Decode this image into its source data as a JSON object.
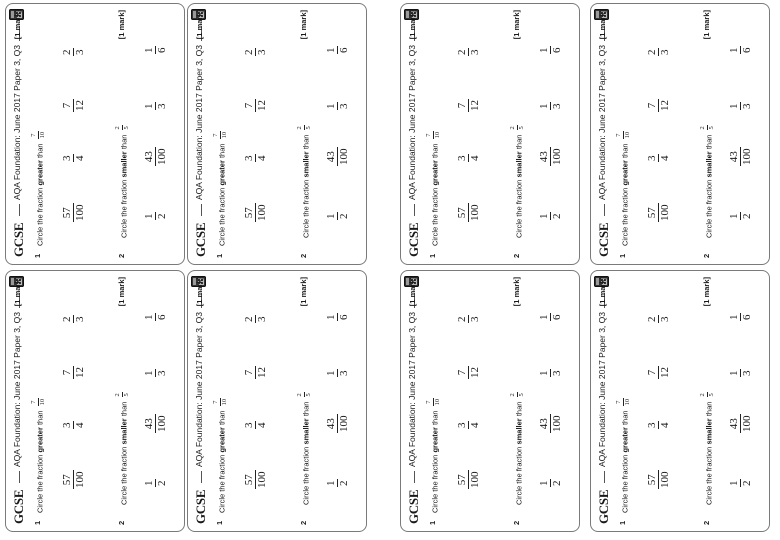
{
  "card": {
    "gcse_label": "GCSE",
    "paper_ref": "AQA Foundation: June 2017 Paper 3, Q3",
    "calculator_icon": "calculator-icon",
    "questions": [
      {
        "number": "1",
        "text_pre": "Circle the fraction ",
        "text_bold": "greater",
        "text_post": " than",
        "target": {
          "num": "7",
          "den": "10"
        },
        "mark": "[1 mark]",
        "options": [
          {
            "num": "57",
            "den": "100"
          },
          {
            "num": "3",
            "den": "4"
          },
          {
            "num": "7",
            "den": "12"
          },
          {
            "num": "2",
            "den": "3"
          }
        ]
      },
      {
        "number": "2",
        "text_pre": "Circle the fraction ",
        "text_bold": "smaller",
        "text_post": " than",
        "target": {
          "num": "2",
          "den": "5"
        },
        "mark": "[1 mark]",
        "options": [
          {
            "num": "1",
            "den": "2"
          },
          {
            "num": "43",
            "den": "100"
          },
          {
            "num": "1",
            "den": "3"
          },
          {
            "num": "1",
            "den": "6"
          }
        ]
      }
    ]
  }
}
